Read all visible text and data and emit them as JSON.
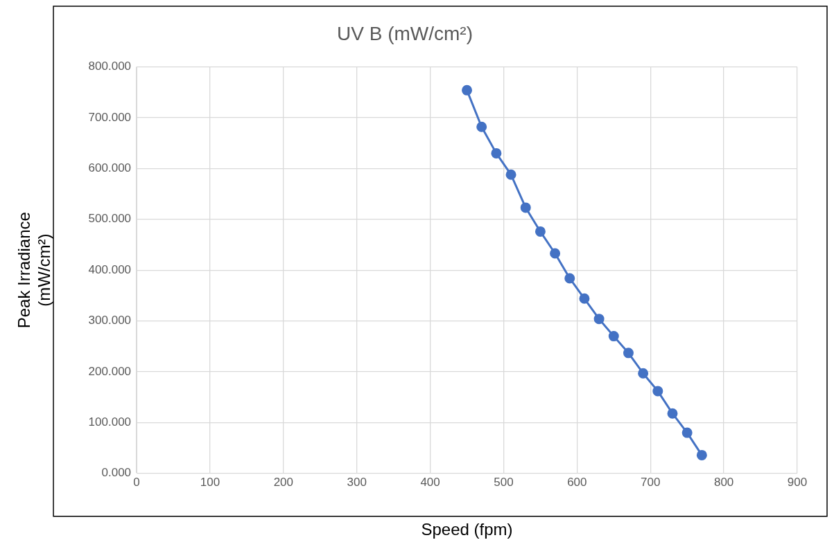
{
  "chart_data": {
    "type": "line",
    "title": "UV B (mW/cm²)",
    "xlabel": "Speed (fpm)",
    "ylabel": "Peak Irradiance (mW/cm²)",
    "x": [
      450,
      470,
      490,
      510,
      530,
      550,
      570,
      590,
      610,
      630,
      650,
      670,
      690,
      710,
      730,
      750,
      770
    ],
    "series": [
      {
        "color": "#4472c4",
        "values": [
          754,
          682,
          630,
          588,
          523,
          476,
          433,
          384,
          344,
          304,
          270,
          237,
          197,
          162,
          118,
          80,
          36
        ]
      }
    ],
    "xlim": [
      0,
      900
    ],
    "xticks": [
      0,
      100,
      200,
      300,
      400,
      500,
      600,
      700,
      800,
      900
    ],
    "ylim": [
      0,
      800
    ],
    "yticks": [
      {
        "value": 0,
        "label": "0.000"
      },
      {
        "value": 100,
        "label": "100.000"
      },
      {
        "value": 200,
        "label": "200.000"
      },
      {
        "value": 300,
        "label": "300.000"
      },
      {
        "value": 400,
        "label": "400.000"
      },
      {
        "value": 500,
        "label": "500.000"
      },
      {
        "value": 600,
        "label": "600.000"
      },
      {
        "value": 700,
        "label": "700.000"
      },
      {
        "value": 800,
        "label": "800.000"
      }
    ],
    "grid": true,
    "marker": "circle",
    "line_style": "solid",
    "legend": false
  }
}
